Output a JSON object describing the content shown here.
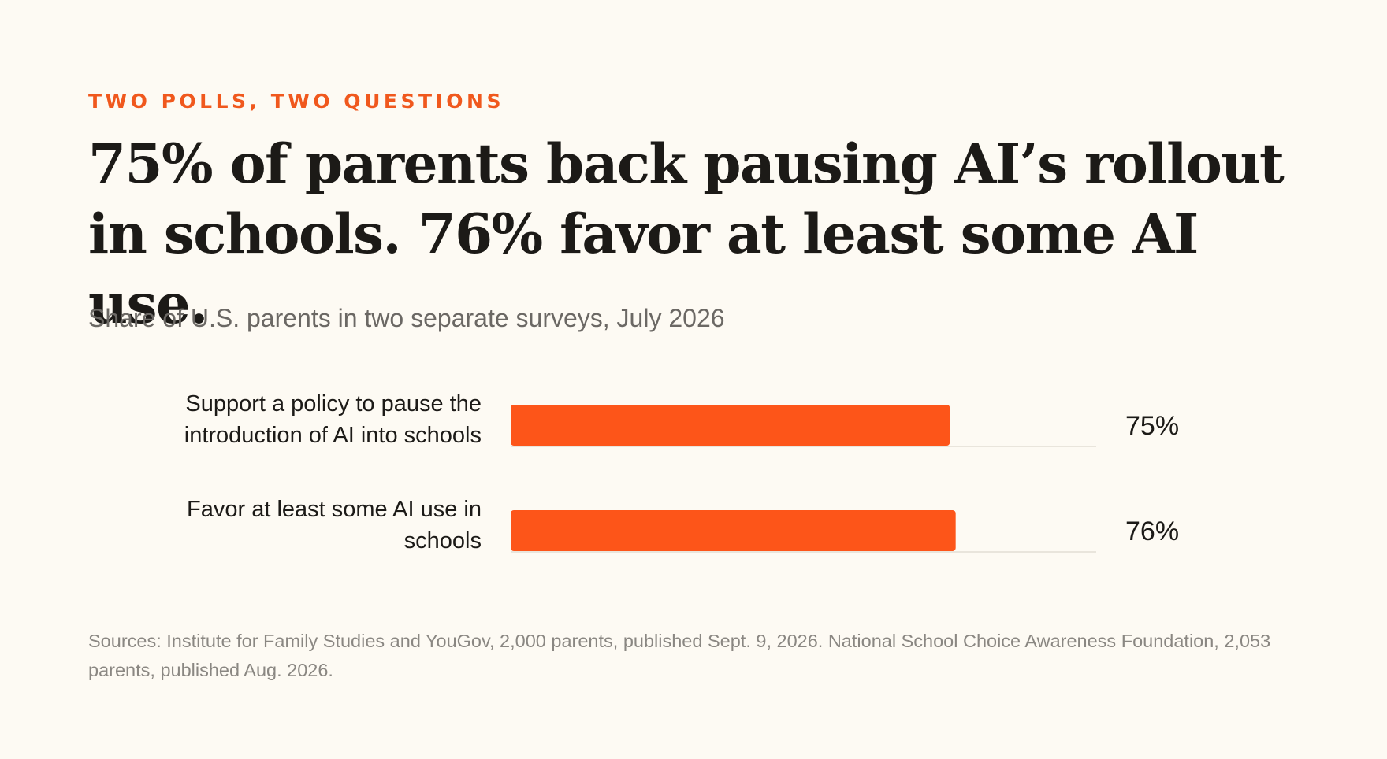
{
  "kicker": "TWO POLLS, TWO QUESTIONS",
  "headline": "75% of parents back pausing AI’s rollout in schools. 76% favor at least some AI use.",
  "subtitle": "Share of U.S. parents in two separate surveys, July 2026",
  "source": "Sources: Institute for Family Studies and YouGov, 2,000 parents, published Sept. 9, 2026. National School Choice Awareness Foundation, 2,053 parents, published Aug. 2026.",
  "colors": {
    "accent": "#f0581d",
    "bar": "#fd5519",
    "background": "#fdfaf3",
    "text": "#1c1a17",
    "muted": "#6b6864",
    "track": "#e9e5dc"
  },
  "chart_data": {
    "type": "bar",
    "orientation": "horizontal",
    "categories": [
      [
        "Support a policy to pause the",
        "introduction of AI into schools"
      ],
      [
        "Favor at least some AI use in",
        "schools"
      ]
    ],
    "values": [
      75,
      76
    ],
    "value_labels": [
      "75%",
      "76%"
    ],
    "unit": "%",
    "xlim": [
      0,
      100
    ],
    "grid": false,
    "legend": "none"
  }
}
